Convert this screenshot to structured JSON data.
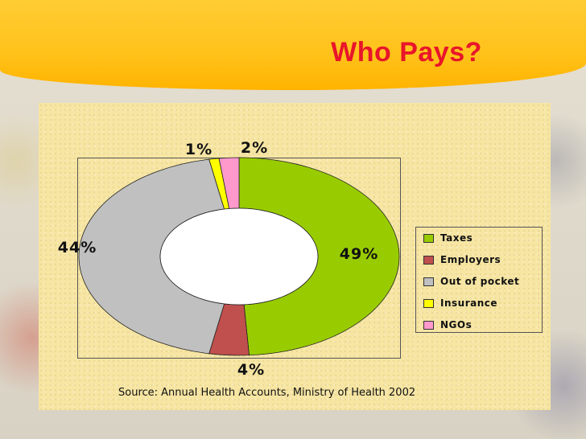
{
  "slide": {
    "title": "Who Pays?",
    "source": "Source: Annual Health Accounts, Ministry of Health 2002"
  },
  "colors": {
    "title": "#e8152a",
    "header": "#ffc21a",
    "panel": "#f6e5a3"
  },
  "chart_data": {
    "type": "pie",
    "variant": "doughnut",
    "categories": [
      "Taxes",
      "Employers",
      "Out of pocket",
      "Insurance",
      "NGOs"
    ],
    "values": [
      49,
      4,
      44,
      1,
      2
    ],
    "data_labels": [
      "49%",
      "4%",
      "44%",
      "1%",
      "2%"
    ],
    "colors": [
      "#99cc00",
      "#c0504d",
      "#c0c0c0",
      "#ffff00",
      "#ff99cc"
    ],
    "legend_position": "right"
  }
}
